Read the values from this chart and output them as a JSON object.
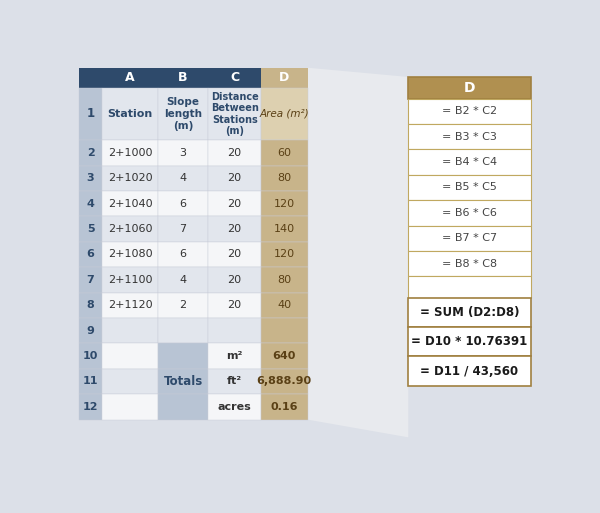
{
  "col_headers": [
    "A",
    "B",
    "C",
    "D"
  ],
  "header_col1": "Station",
  "data_rows": [
    [
      "2+1000",
      "3",
      "20",
      "60"
    ],
    [
      "2+1020",
      "4",
      "20",
      "80"
    ],
    [
      "2+1040",
      "6",
      "20",
      "120"
    ],
    [
      "2+1060",
      "7",
      "20",
      "140"
    ],
    [
      "2+1080",
      "6",
      "20",
      "120"
    ],
    [
      "2+1100",
      "4",
      "20",
      "80"
    ],
    [
      "2+1120",
      "2",
      "20",
      "40"
    ]
  ],
  "totals_rows": [
    [
      "m²",
      "640"
    ],
    [
      "ft²",
      "6,888.90"
    ],
    [
      "acres",
      "0.16"
    ]
  ],
  "formulas": [
    "= B2 * C2",
    "= B3 * C3",
    "= B4 * C4",
    "= B5 * C5",
    "= B6 * C6",
    "= B7 * C7",
    "= B8 * C8"
  ],
  "formulas_bottom": [
    "= SUM (D2:D8)",
    "= D10 * 10.76391",
    "= D11 / 43,560"
  ],
  "col_header_bg": "#2e4a6b",
  "col_header_text": "#ffffff",
  "row_num_bg": "#b8c4d4",
  "row_num_bg_light": "#ccd3de",
  "row_num_text": "#2e4a6b",
  "data_bg_white": "#f5f6f8",
  "data_bg_alt": "#e2e6ed",
  "d_col_bg": "#c8b48a",
  "d_col_bg_light": "#ddd0b0",
  "d_col_text": "#5a4015",
  "totals_b_bg": "#b8c4d4",
  "formula_box_header_bg": "#b09050",
  "formula_box_border": "#a08040",
  "formula_body_bg": "#ffffff",
  "formula_body_border": "#c0a860",
  "formula_text_normal": "#444444",
  "formula_text_bold": "#1a1a1a",
  "connector_bg": "#e8eaee",
  "outer_bg": "#dce0e8",
  "row_border": "#c8ccd8"
}
